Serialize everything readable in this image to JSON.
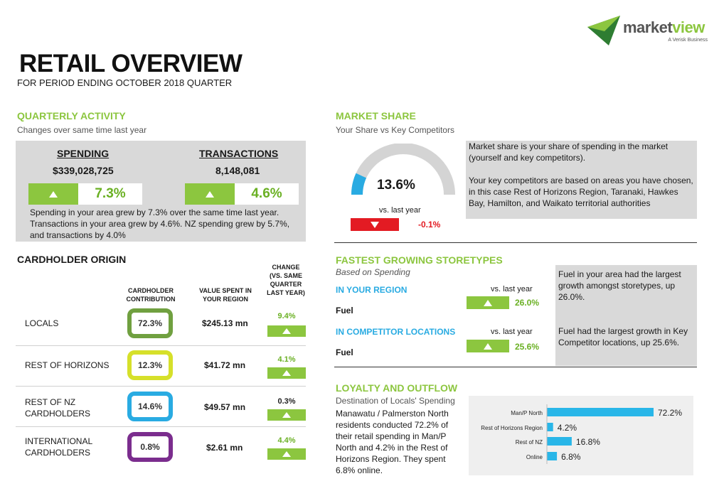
{
  "brand": {
    "name_a": "market",
    "name_b": "view",
    "tagline": "A Verisk Business",
    "accent": "#8cc63f"
  },
  "header": {
    "title": "RETAIL OVERVIEW",
    "subtitle": "FOR PERIOD ENDING OCTOBER 2018 QUARTER"
  },
  "quarterly": {
    "heading": "QUARTERLY ACTIVITY",
    "subheading": "Changes over same time last year",
    "spending": {
      "label": "SPENDING",
      "value": "$339,028,725",
      "change": "7.3%"
    },
    "transactions": {
      "label": "TRANSACTIONS",
      "value": "8,148,081",
      "change": "4.6%"
    },
    "note": "Spending in your area grew by 7.3% over the same time last year. Transactions in your area grew by 4.6%.  NZ spending grew by 5.7%, and transactions by 4.0%"
  },
  "market_share": {
    "heading": "MARKET SHARE",
    "subheading": "Your Share vs Key Competitors",
    "value": "13.6%",
    "value_fraction": 0.136,
    "vs_label": "vs. last year",
    "change": "-0.1%",
    "note_1": "Market share is your share of spending in the market (yourself and key competitors).",
    "note_2": "Your key competitors are based on areas you have chosen, in this case Rest of Horizons Region, Taranaki, Hawkes Bay, Hamilton,  and Waikato territorial authorities"
  },
  "cardholder": {
    "heading": "CARDHOLDER ORIGIN",
    "col_contribution": "CARDHOLDER CONTRIBUTION",
    "col_value": "VALUE SPENT IN YOUR REGION",
    "col_change": "CHANGE (VS. SAME QUARTER LAST YEAR)",
    "rows": [
      {
        "label": "LOCALS",
        "contribution": "72.3%",
        "value": "$245.13 mn",
        "change": "9.4%",
        "color": "#70a040"
      },
      {
        "label": "REST OF HORIZONS",
        "contribution": "12.3%",
        "value": "$41.72 mn",
        "change": "4.1%",
        "color": "#d6e02a"
      },
      {
        "label": "REST OF NZ CARDHOLDERS",
        "contribution": "14.6%",
        "value": "$49.57 mn",
        "change": "0.3%",
        "color": "#29abe2"
      },
      {
        "label": "INTERNATIONAL CARDHOLDERS",
        "contribution": "0.8%",
        "value": "$2.61 mn",
        "change": "4.4%",
        "color": "#7b2d8e"
      }
    ]
  },
  "fastest": {
    "heading": "FASTEST GROWING STORETYPES",
    "subheading": "Based on Spending",
    "region_label": "IN YOUR REGION",
    "region_store": "Fuel",
    "region_vs": "vs. last year",
    "region_change": "26.0%",
    "comp_label": "IN COMPETITOR LOCATIONS",
    "comp_store": "Fuel",
    "comp_vs": "vs. last year",
    "comp_change": "25.6%",
    "note_1": "Fuel in your area had the largest growth amongst storetypes, up 26.0%.",
    "note_2": "Fuel had the largest growth in Key Competitor locations, up 25.6%."
  },
  "loyalty": {
    "heading": "LOYALTY AND OUTFLOW",
    "subheading": "Destination of Locals' Spending",
    "note": "Manawatu / Palmerston North residents conducted 72.2% of their retail spending in Man/P North and 4.2% in the Rest of Horizons Region. They spent 6.8% online."
  },
  "chart_data": {
    "type": "bar",
    "categories": [
      "Man/P North",
      "Rest of Horizons Region",
      "Rest of NZ",
      "Online"
    ],
    "values": [
      72.2,
      4.2,
      16.8,
      6.8
    ],
    "labels": [
      "72.2%",
      "4.2%",
      "16.8%",
      "6.8%"
    ],
    "bar_color": "#29b6e8"
  }
}
